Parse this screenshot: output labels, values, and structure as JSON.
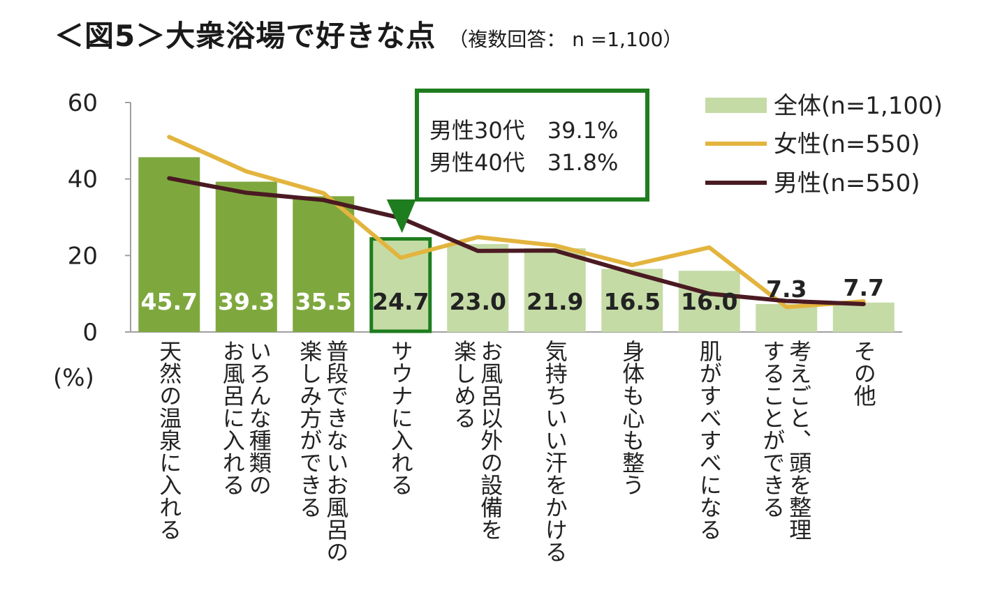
{
  "title": "＜図5＞大衆浴場で好きな点",
  "subtitle": "（複数回答： n =1,100）",
  "colors": {
    "bar": "#7ea83e",
    "bar_light": "#c5dba6",
    "female": "#e3b43e",
    "male": "#4a1a22",
    "callout": "#1e7d1e"
  },
  "chart_data": {
    "type": "bar",
    "title": "＜図5＞大衆浴場で好きな点",
    "ylabel": "(%)",
    "ylim": [
      0,
      60
    ],
    "yticks": [
      "0",
      "20",
      "40",
      "60"
    ],
    "categories": [
      "天然の温泉に入れる",
      "いろんな種類のお風呂に入れる",
      "普段できないお風呂の楽しみ方ができる",
      "サウナに入れる",
      "お風呂以外の設備を楽しめる",
      "気持ちいい汗をかける",
      "身体も心も整う",
      "肌がすべすべになる",
      "考えごと、頭を整理することができる",
      "その他"
    ],
    "category_lines": [
      [
        "天然の温泉に入れる"
      ],
      [
        "いろんな種類の",
        "お風呂に入れる"
      ],
      [
        "普段できないお風呂の",
        "楽しみ方ができる"
      ],
      [
        "サウナに入れる"
      ],
      [
        "お風呂以外の設備を",
        "楽しめる"
      ],
      [
        "気持ちいい汗をかける"
      ],
      [
        "身体も心も整う"
      ],
      [
        "肌がすべすべになる"
      ],
      [
        "考えごと、頭を整理",
        "することができる"
      ],
      [
        "その他"
      ]
    ],
    "series": [
      {
        "name": "全体(n=1,100)",
        "type": "bar",
        "values": [
          45.7,
          39.3,
          35.5,
          24.7,
          23.0,
          21.9,
          16.5,
          16.0,
          7.3,
          7.7
        ],
        "labels": [
          "45.7",
          "39.3",
          "35.5",
          "24.7",
          "23.0",
          "21.9",
          "16.5",
          "16.0",
          "7.3",
          "7.7"
        ]
      },
      {
        "name": "女性(n=550)",
        "type": "line",
        "values": [
          51.0,
          42.0,
          36.3,
          19.4,
          24.8,
          22.6,
          17.5,
          22.1,
          6.5,
          8.0
        ]
      },
      {
        "name": "男性(n=550)",
        "type": "line",
        "values": [
          40.2,
          36.4,
          34.5,
          29.8,
          21.2,
          21.3,
          15.5,
          10.0,
          8.1,
          7.3
        ]
      }
    ],
    "legend": [
      "全体(n=1,100)",
      "女性(n=550)",
      "男性(n=550)"
    ],
    "callout": {
      "category": "サウナに入れる",
      "lines": [
        "男性30代　39.1%",
        "男性40代　31.8%"
      ]
    }
  }
}
